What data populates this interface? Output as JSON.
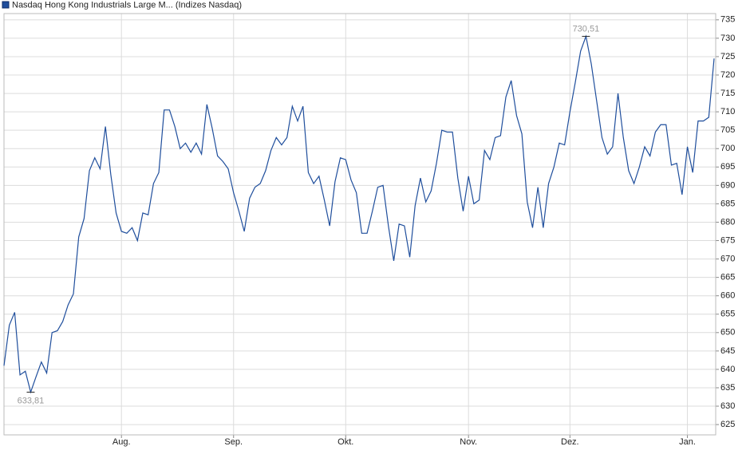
{
  "chart_data": {
    "type": "line",
    "series": [
      {
        "name": "Nasdaq Hong Kong Industrials Large M... (Indizes Nasdaq)",
        "color": "#1f4e9c",
        "values": [
          641,
          652,
          655.5,
          638.5,
          639.5,
          633.81,
          638,
          642,
          639,
          650,
          650.5,
          653,
          657.5,
          660.5,
          676,
          681,
          694,
          697.5,
          694.5,
          706,
          693,
          682.5,
          677.5,
          677,
          678.5,
          675,
          682.5,
          682,
          690.5,
          693.5,
          710.5,
          710.5,
          706,
          700,
          701.5,
          699,
          701.5,
          698.5,
          712,
          705.5,
          698,
          696.5,
          694.5,
          688,
          683,
          677.5,
          686.5,
          689.5,
          690.5,
          694,
          699.5,
          703,
          701,
          703,
          711.5,
          707.5,
          711.5,
          693.5,
          690.5,
          692.5,
          686,
          679,
          691,
          697.5,
          697,
          691.5,
          688,
          677,
          677,
          683,
          689.5,
          690,
          679,
          669.5,
          679.5,
          679,
          670.5,
          684.5,
          692,
          685.5,
          688.5,
          696,
          705,
          704.5,
          704.5,
          692,
          683,
          692.5,
          685,
          686,
          699.5,
          697,
          703,
          703.5,
          714,
          718.5,
          709,
          704,
          685.5,
          678.5,
          689.5,
          678.5,
          690.5,
          695,
          701.5,
          701,
          710,
          718,
          726.5,
          730.51,
          723,
          713,
          703,
          698.5,
          700.5,
          715,
          703,
          694,
          690.5,
          695,
          700.5,
          698,
          704.5,
          706.5,
          706.5,
          695.5,
          696,
          687.5,
          700.5,
          693.5,
          707.5,
          707.5,
          708.5,
          724.5
        ],
        "value_labels": [
          null,
          null,
          null,
          null,
          null,
          "633,81",
          null,
          null,
          null,
          null,
          null,
          null,
          null,
          null,
          null,
          null,
          null,
          null,
          null,
          null,
          null,
          null,
          null,
          null,
          null,
          null,
          null,
          null,
          null,
          null,
          null,
          null,
          null,
          null,
          null,
          null,
          null,
          null,
          null,
          null,
          null,
          null,
          null,
          null,
          null,
          null,
          null,
          null,
          null,
          null,
          null,
          null,
          null,
          null,
          null,
          null,
          null,
          null,
          null,
          null,
          null,
          null,
          null,
          null,
          null,
          null,
          null,
          null,
          null,
          null,
          null,
          null,
          null,
          null,
          null,
          null,
          null,
          null,
          null,
          null,
          null,
          null,
          null,
          null,
          null,
          null,
          null,
          null,
          null,
          null,
          null,
          null,
          null,
          null,
          null,
          null,
          null,
          null,
          null,
          null,
          null,
          null,
          null,
          null,
          null,
          null,
          null,
          null,
          null,
          "730,51",
          null,
          null,
          null,
          null,
          null,
          null,
          null,
          null,
          null,
          null,
          null,
          null,
          null,
          null,
          null,
          null,
          null,
          null,
          null,
          null,
          null,
          null,
          null,
          null
        ]
      }
    ],
    "categories": [
      null,
      null,
      null,
      null,
      null,
      null,
      null,
      null,
      null,
      null,
      null,
      null,
      null,
      null,
      null,
      null,
      null,
      null,
      null,
      null,
      null,
      null,
      "Aug.",
      null,
      null,
      null,
      null,
      null,
      null,
      null,
      null,
      null,
      null,
      null,
      null,
      null,
      null,
      null,
      null,
      null,
      null,
      null,
      null,
      "Sep.",
      null,
      null,
      null,
      null,
      null,
      null,
      null,
      null,
      null,
      null,
      null,
      null,
      null,
      null,
      null,
      null,
      null,
      null,
      null,
      null,
      "Okt.",
      null,
      null,
      null,
      null,
      null,
      null,
      null,
      null,
      null,
      null,
      null,
      null,
      null,
      null,
      null,
      null,
      null,
      null,
      null,
      null,
      null,
      null,
      "Nov.",
      null,
      null,
      null,
      null,
      null,
      null,
      null,
      null,
      null,
      null,
      null,
      null,
      null,
      null,
      null,
      null,
      null,
      null,
      "Dez.",
      null,
      null,
      null,
      null,
      null,
      null,
      null,
      null,
      null,
      null,
      null,
      null,
      null,
      null,
      null,
      null,
      null,
      null,
      null,
      null,
      null,
      "Jan.",
      null,
      null,
      null,
      null,
      null
    ],
    "ylim": [
      622.2,
      736.7
    ],
    "yticks": [
      625,
      630,
      635,
      640,
      645,
      650,
      655,
      660,
      665,
      670,
      675,
      680,
      685,
      690,
      695,
      700,
      705,
      710,
      715,
      720,
      725,
      730,
      735
    ],
    "grid": true
  }
}
